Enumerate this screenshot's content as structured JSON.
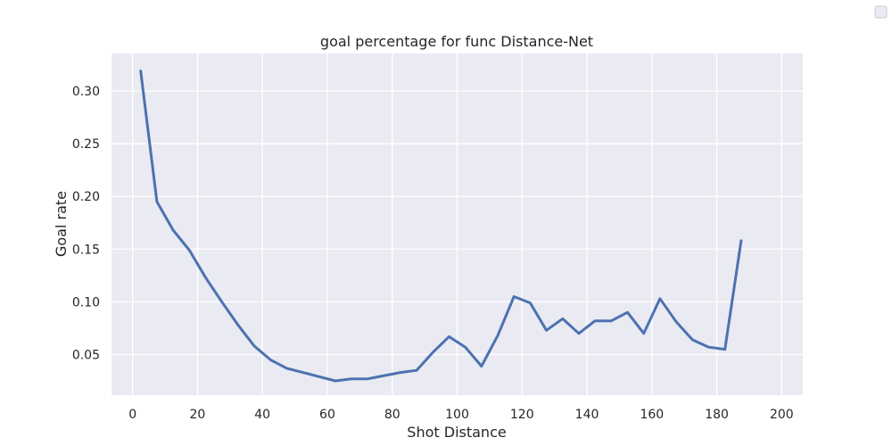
{
  "chart_data": {
    "type": "line",
    "title": "goal percentage for func Distance-Net",
    "xlabel": "Shot Distance",
    "ylabel": "Goal rate",
    "xlim": [
      -6.5,
      206.5
    ],
    "ylim": [
      0.0115,
      0.3355
    ],
    "xticks": [
      0,
      20,
      40,
      60,
      80,
      100,
      120,
      140,
      160,
      180,
      200
    ],
    "yticks": [
      0.05,
      0.1,
      0.15,
      0.2,
      0.25,
      0.3
    ],
    "ytick_labels": [
      "0.05",
      "0.10",
      "0.15",
      "0.20",
      "0.25",
      "0.30"
    ],
    "grid": true,
    "legend": "top-right",
    "colors": {
      "background": "#eaeaf2",
      "grid": "#ffffff",
      "line": "#4c72b0",
      "text": "#262626"
    },
    "series": [
      {
        "x": [
          2.5,
          7.5,
          12.5,
          17.5,
          22.5,
          27.5,
          32.5,
          37.5,
          42.5,
          47.5,
          52.5,
          57.5,
          62.5,
          67.5,
          72.5,
          77.5,
          82.5,
          87.5,
          92.5,
          97.5,
          102.5,
          107.5,
          112.5,
          117.5,
          122.5,
          127.5,
          132.5,
          137.5,
          142.5,
          147.5,
          152.5,
          157.5,
          162.5,
          167.5,
          172.5,
          177.5,
          182.5,
          187.5
        ],
        "values": [
          0.319,
          0.195,
          0.168,
          0.149,
          0.123,
          0.1,
          0.078,
          0.058,
          0.045,
          0.037,
          0.033,
          0.029,
          0.025,
          0.027,
          0.027,
          0.03,
          0.033,
          0.035,
          0.052,
          0.067,
          0.057,
          0.039,
          0.068,
          0.105,
          0.099,
          0.073,
          0.084,
          0.07,
          0.082,
          0.082,
          0.09,
          0.07,
          0.103,
          0.081,
          0.064,
          0.057,
          0.055,
          0.158
        ]
      }
    ]
  }
}
